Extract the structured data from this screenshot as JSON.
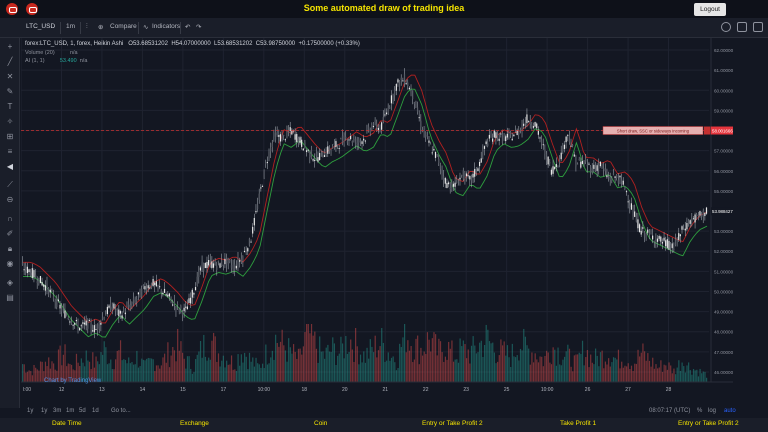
{
  "app": {
    "title": "Some automated draw of trading idea",
    "logout_label": "Logout"
  },
  "toolbar": {
    "symbol": "LTC_USD",
    "interval": "1m",
    "compare_label": "Compare",
    "indicators_label": "Indicators"
  },
  "legend": {
    "series": "forex:LTC_USD, 1, forex, Heikin Ashi",
    "open": "O53.68531202",
    "high": "H54.07000000",
    "low": "L53.68531202",
    "close": "C53.98750000",
    "change": "+0.17500000 (+0.33%)",
    "volume": "Volume (20)",
    "volume_val": "n/a",
    "ai": "AI (1, 1)",
    "ai_val": "53.490",
    "ai_na": "n/a"
  },
  "annotation": {
    "label": "Short draw, SSC or sideways incoming"
  },
  "watermark": "Chart by TradingView",
  "timeframes": [
    "1y",
    "1y",
    "3m",
    "1m",
    "5d",
    "1d",
    "Go to..."
  ],
  "bottom_right": {
    "clock": "08:07:17 (UTC)",
    "pct": "%",
    "log": "log",
    "auto": "auto"
  },
  "footer": [
    "Date Time",
    "Exchange",
    "Coin",
    "Entry or Take Profit 2",
    "Take Profit 1",
    "Entry or Take Profit 2"
  ],
  "colors": {
    "up": "#26a69a",
    "down": "#ef5350",
    "candle_body": "#c8c8c8",
    "ma_green": "#2e9e3e",
    "ma_red": "#b02020",
    "annotation_line": "#c43030",
    "price_tag": "#e6353d"
  },
  "chart_data": {
    "type": "candlestick",
    "y_ticks": [
      "62.00000000",
      "61.00000000",
      "60.00000000",
      "59.00000000",
      "58.00000000",
      "57.00000000",
      "56.00000000",
      "55.00000000",
      "54.00000000",
      "53.00000000",
      "52.00000000",
      "51.00000000",
      "50.00000000",
      "49.00000000",
      "48.00000000",
      "47.00000000",
      "46.00000000"
    ],
    "ylim": [
      45.5,
      62.4
    ],
    "x_ticks": [
      "",
      "12",
      "13",
      "14",
      "15",
      "17",
      "10:00",
      "18",
      "20",
      "21",
      "22",
      "23",
      "25",
      "10:00",
      "26",
      "27",
      "28"
    ],
    "first_x_label": "l:00",
    "annotation_price": 58.0,
    "annotation_price_tag": "58.00166666",
    "current_price": 53.9875,
    "current_price_tag": "53.98842750",
    "price_path": [
      51.2,
      51.0,
      50.6,
      50.2,
      49.6,
      49.0,
      48.6,
      48.2,
      48.4,
      48.1,
      48.8,
      49.3,
      48.8,
      49.2,
      49.6,
      50.2,
      50.4,
      50.1,
      49.7,
      49.2,
      49.0,
      50.0,
      51.2,
      51.4,
      51.3,
      51.5,
      51.2,
      51.7,
      52.5,
      54.5,
      56.5,
      57.8,
      57.6,
      58.0,
      57.5,
      57.0,
      56.6,
      56.9,
      57.1,
      57.4,
      57.7,
      57.4,
      57.6,
      58.3,
      58.1,
      59.2,
      60.3,
      60.6,
      59.7,
      58.2,
      57.3,
      56.6,
      55.4,
      55.2,
      55.8,
      55.5,
      56.2,
      57.4,
      57.8,
      57.6,
      57.7,
      58.0,
      58.6,
      58.3,
      57.1,
      56.0,
      56.6,
      57.9,
      56.4,
      56.4,
      56.1,
      56.3,
      55.6,
      55.7,
      55.2,
      53.9,
      53.0,
      52.8,
      52.6,
      52.4,
      52.2,
      53.0,
      53.5,
      53.7,
      53.99
    ],
    "volume_path": [
      5,
      3,
      4,
      6,
      5,
      8,
      4,
      6,
      7,
      5,
      9,
      6,
      8,
      5,
      7,
      4,
      6,
      5,
      8,
      10,
      6,
      4,
      9,
      12,
      8,
      7,
      5,
      9,
      6,
      4,
      8,
      12,
      10,
      8,
      6,
      14,
      10,
      7,
      9,
      8,
      12,
      10,
      7,
      9,
      11,
      8,
      6,
      14,
      10,
      9,
      12,
      8,
      10,
      7,
      9,
      8,
      10,
      12,
      9,
      8,
      7,
      11,
      9,
      8,
      6,
      10,
      8,
      7,
      5,
      9,
      6,
      7,
      8,
      6,
      7,
      5,
      8,
      6,
      4,
      5,
      3,
      6,
      4,
      3,
      2
    ]
  }
}
